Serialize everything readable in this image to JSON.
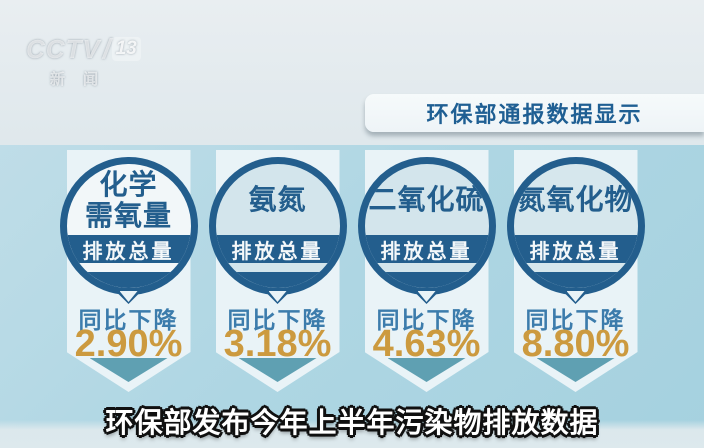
{
  "colors": {
    "navy": "#235e8d",
    "gold": "#cc9a3f",
    "trend-blue": "#3c7cac",
    "teal": "#5fa0b2",
    "ribbon": "#e9f3f7",
    "banner-text": "#1f5f93"
  },
  "watermark": {
    "channel": "CCTV",
    "separator": "/",
    "number": "13",
    "subtitle": "新闻"
  },
  "banner": {
    "text": "环保部通报数据显示"
  },
  "badges": [
    {
      "title": "化学\n需氧量",
      "band": "排放总量",
      "trend_label": "同比下降",
      "value": "2.90%",
      "circle_fill": "#f2f7f9"
    },
    {
      "title": "氨氮",
      "band": "排放总量",
      "trend_label": "同比下降",
      "value": "3.18%",
      "circle_fill": "#d3e5ec"
    },
    {
      "title": "二氧化硫",
      "band": "排放总量",
      "trend_label": "同比下降",
      "value": "4.63%",
      "circle_fill": "#d3e5ec"
    },
    {
      "title": "氮氧化物",
      "band": "排放总量",
      "trend_label": "同比下降",
      "value": "8.80%",
      "circle_fill": "#d6e7ed"
    }
  ],
  "caption": {
    "text": "环保部发布今年上半年污染物排放数据"
  },
  "chart_data": {
    "type": "table",
    "title": "环保部通报数据显示",
    "categories": [
      "化学需氧量排放总量",
      "氨氮排放总量",
      "二氧化硫排放总量",
      "氮氧化物排放总量"
    ],
    "series": [
      {
        "name": "同比下降(%)",
        "values": [
          2.9,
          3.18,
          4.63,
          8.8
        ]
      }
    ],
    "caption": "环保部发布今年上半年污染物排放数据"
  }
}
